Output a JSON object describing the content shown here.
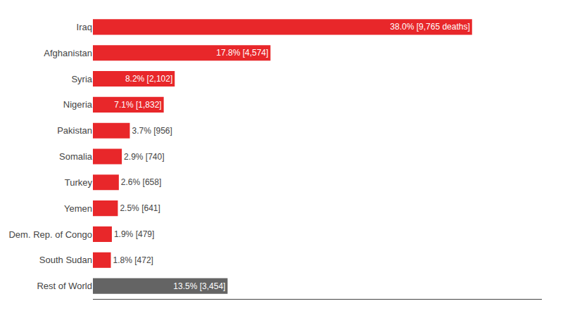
{
  "chart_data": {
    "type": "bar",
    "orientation": "horizontal",
    "categories": [
      "Iraq",
      "Afghanistan",
      "Syria",
      "Nigeria",
      "Pakistan",
      "Somalia",
      "Turkey",
      "Yemen",
      "Dem. Rep. of Congo",
      "South Sudan",
      "Rest of World"
    ],
    "values": [
      38.0,
      17.8,
      8.2,
      7.1,
      3.7,
      2.9,
      2.6,
      2.5,
      1.9,
      1.8,
      13.5
    ],
    "value_labels": [
      "38.0% [9,765 deaths]",
      "17.8% [4,574]",
      "8.2% [2,102]",
      "7.1% [1,832]",
      "3.7% [956]",
      "2.9% [740]",
      "2.6% [658]",
      "2.5% [641]",
      "1.9% [479]",
      "1.8% [472]",
      "13.5% [3,454]"
    ],
    "colors": [
      "#e8272a",
      "#e8272a",
      "#e8272a",
      "#e8272a",
      "#e8272a",
      "#e8272a",
      "#e8272a",
      "#e8272a",
      "#e8272a",
      "#e8272a",
      "#646464"
    ],
    "data_labels": true,
    "tick_labels": "y",
    "grid": false,
    "xlim": [
      0,
      45
    ]
  }
}
